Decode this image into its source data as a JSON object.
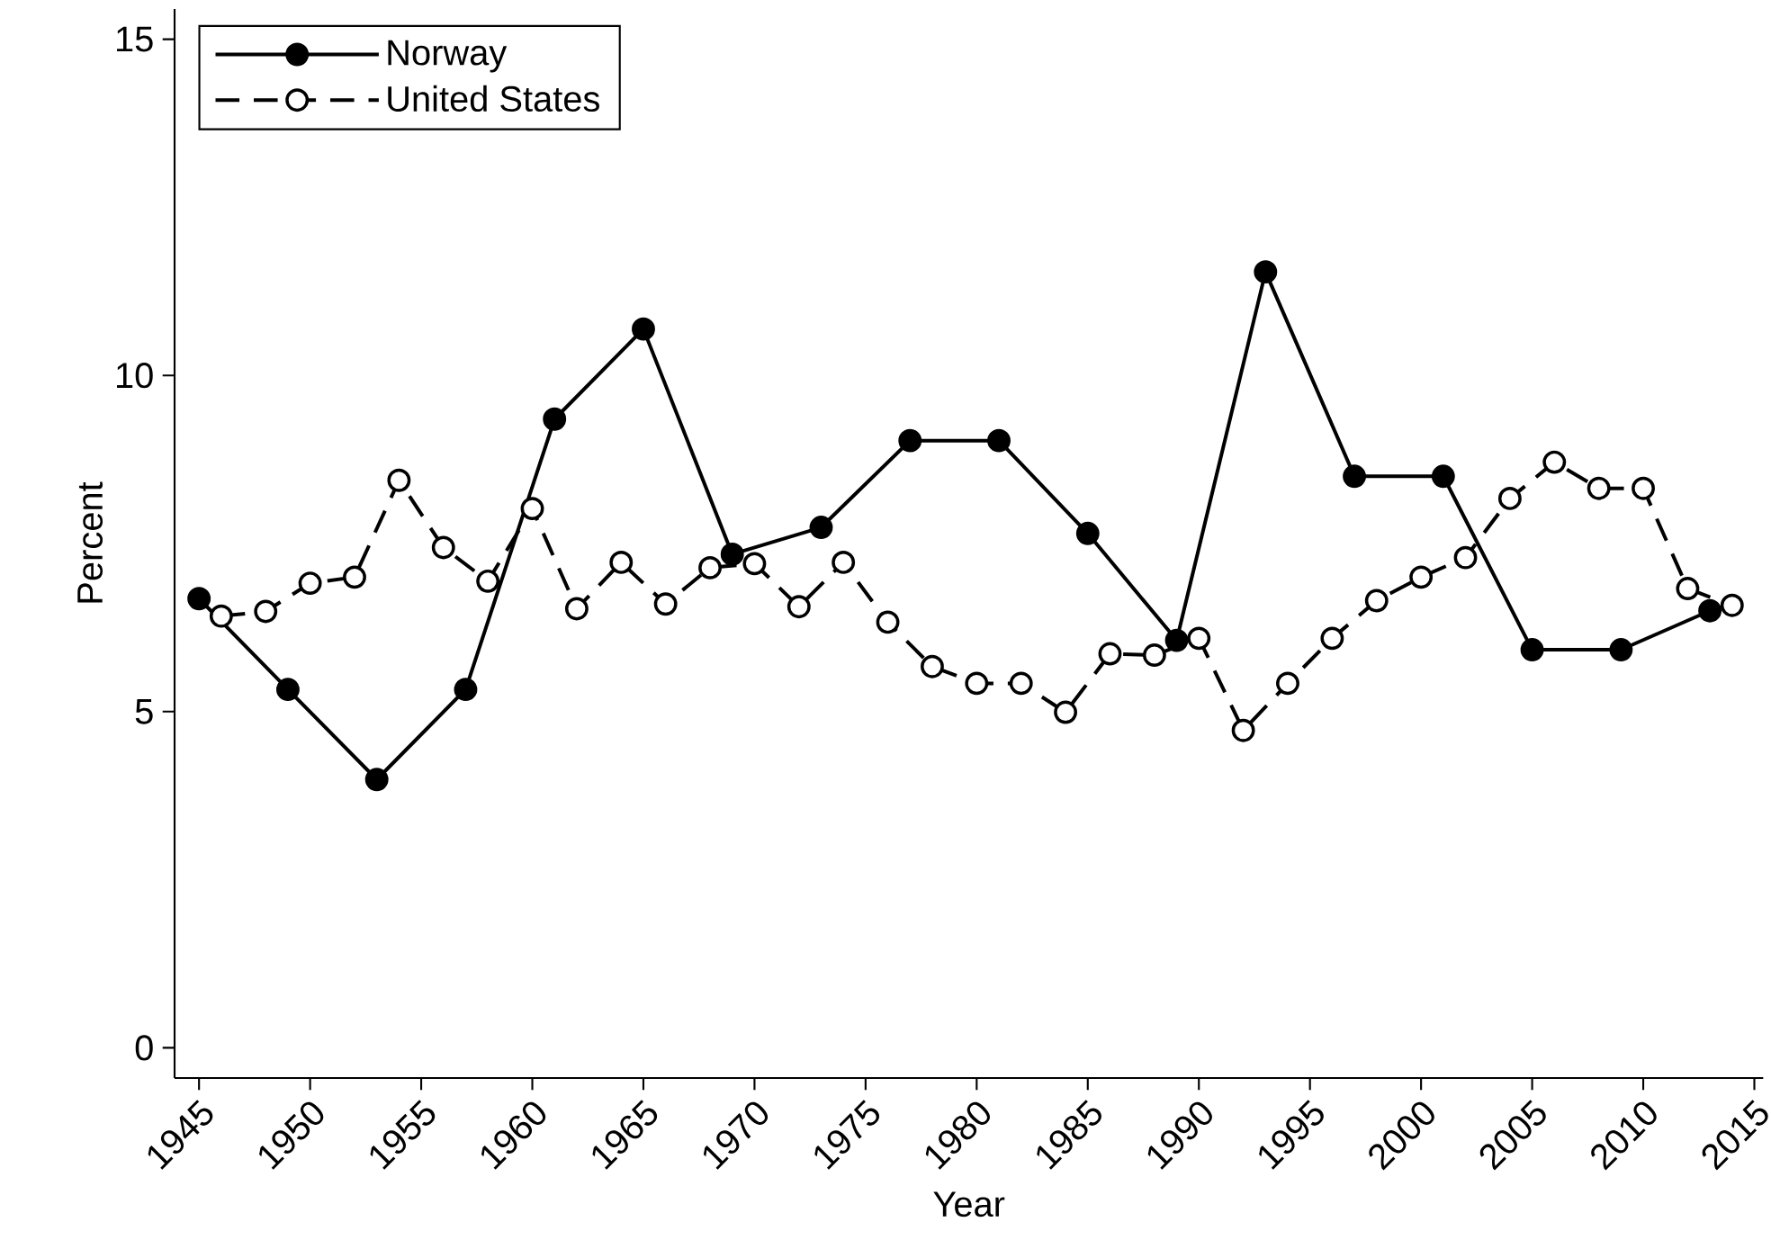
{
  "chart_data": {
    "type": "line",
    "xlabel": "Year",
    "ylabel": "Percent",
    "xlim": [
      1943.9,
      2015.4
    ],
    "ylim": [
      -0.45,
      15.45
    ],
    "xticks": [
      1945,
      1950,
      1955,
      1960,
      1965,
      1970,
      1975,
      1980,
      1985,
      1990,
      1995,
      2000,
      2005,
      2010,
      2015
    ],
    "yticks": [
      0,
      5,
      10,
      15
    ],
    "grid": false,
    "legend": "top left",
    "marker": "circle",
    "series": [
      {
        "name": "Norway",
        "color": "#000000",
        "line_style": "solid",
        "x": [
          1945,
          1949,
          1953,
          1957,
          1961,
          1965,
          1969,
          1973,
          1977,
          1981,
          1985,
          1989,
          1993,
          1997,
          2001,
          2005,
          2009,
          2013
        ],
        "values": [
          6.68,
          5.33,
          3.99,
          5.33,
          9.35,
          10.69,
          7.34,
          7.74,
          9.03,
          9.03,
          7.65,
          6.06,
          11.54,
          8.5,
          8.5,
          5.92,
          5.92,
          6.5
        ]
      },
      {
        "name": "United States",
        "color": "#000000",
        "line_style": "dashed",
        "x": [
          1946,
          1948,
          1950,
          1952,
          1954,
          1956,
          1958,
          1960,
          1962,
          1964,
          1966,
          1968,
          1970,
          1972,
          1974,
          1976,
          1978,
          1980,
          1982,
          1984,
          1986,
          1988,
          1990,
          1992,
          1994,
          1996,
          1998,
          2000,
          2002,
          2004,
          2006,
          2008,
          2010,
          2012,
          2014
        ],
        "values": [
          6.42,
          6.49,
          6.91,
          7.0,
          8.44,
          7.44,
          6.94,
          8.02,
          6.53,
          7.22,
          6.6,
          7.14,
          7.2,
          6.56,
          7.22,
          6.33,
          5.67,
          5.42,
          5.42,
          4.99,
          5.86,
          5.84,
          6.09,
          4.72,
          5.42,
          6.09,
          6.65,
          7.0,
          7.29,
          8.17,
          8.71,
          8.32,
          8.32,
          6.83,
          6.58
        ]
      }
    ]
  }
}
